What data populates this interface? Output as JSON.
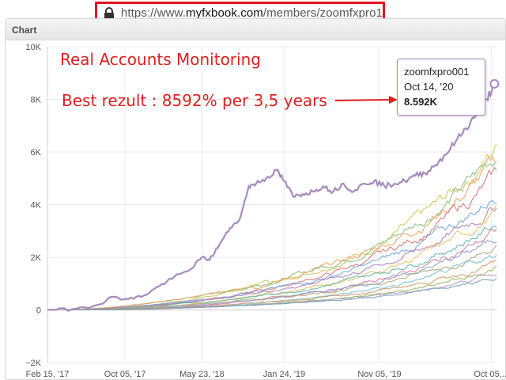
{
  "browser": {
    "url_scheme": "https://www.",
    "url_domain": "myfxbook.com",
    "url_path": "/members/zoomfxpro1",
    "lock_icon": "lock-icon",
    "highlight_color": "#e8141f"
  },
  "panel": {
    "title": "Chart"
  },
  "annotations": {
    "heading": "Real Accounts Monitoring",
    "best": "Best rezult : 8592% per 3,5 years",
    "color": "#e02020"
  },
  "tooltip": {
    "name": "zoomfxpro001",
    "date": "Oct 14, '20",
    "value": "8.592K"
  },
  "chart_data": {
    "type": "line",
    "ylim": [
      -2000,
      10000
    ],
    "yticks": [
      -2000,
      0,
      2000,
      4000,
      6000,
      8000,
      10000
    ],
    "ytick_labels": [
      "−2K",
      "0",
      "2K",
      "4K",
      "6K",
      "8K",
      "10K"
    ],
    "xlim": [
      "2017-02-15",
      "2020-10-20"
    ],
    "xticks": [
      "2017-02-15",
      "2017-10-05",
      "2018-05-23",
      "2019-01-24",
      "2019-11-05",
      "2020-10-05"
    ],
    "xtick_labels": [
      "Feb 15, '17",
      "Oct 05, '17",
      "May 23, '18",
      "Jan 24, '19",
      "Nov 05, '19",
      "Oct 05,..."
    ],
    "grid": true,
    "highlight_series": {
      "color": "#a78bbf",
      "points": [
        [
          "2017-02-15",
          0
        ],
        [
          "2017-05-01",
          30
        ],
        [
          "2017-07-10",
          180
        ],
        [
          "2017-09-01",
          500
        ],
        [
          "2017-10-15",
          400
        ],
        [
          "2017-12-01",
          550
        ],
        [
          "2018-01-15",
          900
        ],
        [
          "2018-03-01",
          1250
        ],
        [
          "2018-04-15",
          1500
        ],
        [
          "2018-05-23",
          2000
        ],
        [
          "2018-06-15",
          1900
        ],
        [
          "2018-07-15",
          2500
        ],
        [
          "2018-08-15",
          3100
        ],
        [
          "2018-09-15",
          3500
        ],
        [
          "2018-10-10",
          4700
        ],
        [
          "2018-11-01",
          4800
        ],
        [
          "2018-12-01",
          5000
        ],
        [
          "2019-01-01",
          5300
        ],
        [
          "2019-01-24",
          4900
        ],
        [
          "2019-02-20",
          4300
        ],
        [
          "2019-03-20",
          4400
        ],
        [
          "2019-04-20",
          4500
        ],
        [
          "2019-05-20",
          4700
        ],
        [
          "2019-06-20",
          4500
        ],
        [
          "2019-07-20",
          4800
        ],
        [
          "2019-08-20",
          4500
        ],
        [
          "2019-09-20",
          4800
        ],
        [
          "2019-10-20",
          4900
        ],
        [
          "2019-11-20",
          4700
        ],
        [
          "2019-12-20",
          4800
        ],
        [
          "2020-01-20",
          4900
        ],
        [
          "2020-02-20",
          5100
        ],
        [
          "2020-03-20",
          5200
        ],
        [
          "2020-04-20",
          5500
        ],
        [
          "2020-05-20",
          5900
        ],
        [
          "2020-06-20",
          6400
        ],
        [
          "2020-07-20",
          6900
        ],
        [
          "2020-08-20",
          7400
        ],
        [
          "2020-09-20",
          8000
        ],
        [
          "2020-10-14",
          8592
        ]
      ]
    },
    "other_series": [
      {
        "color": "#c8c85a",
        "final": 6200
      },
      {
        "color": "#88c27a",
        "final": 5900
      },
      {
        "color": "#f0a060",
        "final": 5600
      },
      {
        "color": "#e07070",
        "final": 5100
      },
      {
        "color": "#6aa8d8",
        "final": 4400
      },
      {
        "color": "#b07ac0",
        "final": 4000
      },
      {
        "color": "#e8c060",
        "final": 3700
      },
      {
        "color": "#5cb8a0",
        "final": 3300
      },
      {
        "color": "#d87aa0",
        "final": 3000
      },
      {
        "color": "#8898d8",
        "final": 2700
      },
      {
        "color": "#a8a878",
        "final": 2400
      },
      {
        "color": "#78c0d8",
        "final": 2100
      },
      {
        "color": "#d89868",
        "final": 1800
      },
      {
        "color": "#98b858",
        "final": 1600
      },
      {
        "color": "#b898c8",
        "final": 1400
      },
      {
        "color": "#70a0b8",
        "final": 1200
      }
    ]
  }
}
